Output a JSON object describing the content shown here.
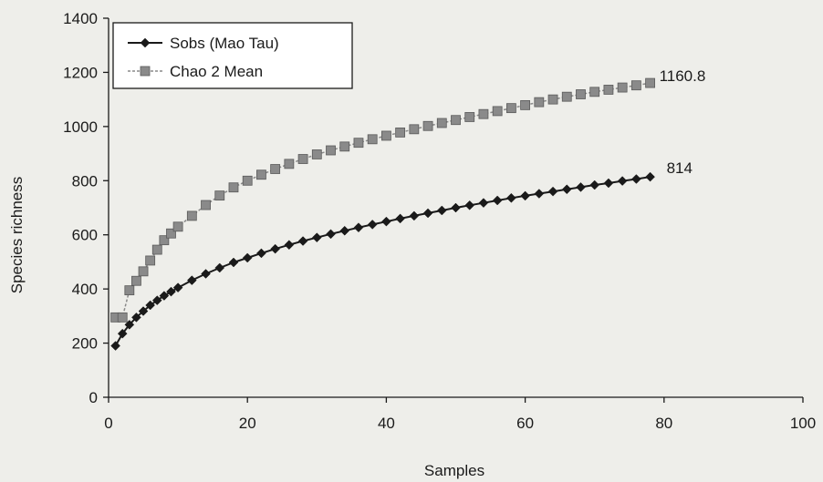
{
  "chart_data": {
    "type": "line",
    "title": "",
    "xlabel": "Samples",
    "ylabel": "Species richness",
    "xlim": [
      0,
      100
    ],
    "ylim": [
      0,
      1400
    ],
    "xticks": [
      0,
      20,
      40,
      60,
      80,
      100
    ],
    "xtick_labels": [
      "0",
      "20",
      "40",
      "60",
      "80",
      "100"
    ],
    "yticks": [
      0,
      200,
      400,
      600,
      800,
      1000,
      1200,
      1400
    ],
    "ytick_labels": [
      "0",
      "200",
      "400",
      "600",
      "800",
      "1000",
      "1200",
      "1400"
    ],
    "grid": false,
    "legend_position": "top-left",
    "x": [
      1,
      2,
      3,
      4,
      5,
      6,
      7,
      8,
      9,
      10,
      12,
      14,
      16,
      18,
      20,
      22,
      24,
      26,
      28,
      30,
      32,
      34,
      36,
      38,
      40,
      42,
      44,
      46,
      48,
      50,
      52,
      54,
      56,
      58,
      60,
      62,
      64,
      66,
      68,
      70,
      72,
      74,
      76,
      78
    ],
    "series": [
      {
        "name": "Sobs (Mao Tau)",
        "color": "#1a1a1a",
        "marker": "diamond",
        "values": [
          190,
          235,
          268,
          295,
          318,
          340,
          358,
          375,
          390,
          405,
          432,
          456,
          478,
          498,
          515,
          532,
          548,
          563,
          577,
          590,
          603,
          615,
          627,
          638,
          649,
          660,
          670,
          680,
          690,
          700,
          709,
          718,
          727,
          736,
          744,
          752,
          760,
          768,
          776,
          784,
          791,
          799,
          806,
          814
        ],
        "end_label": "814"
      },
      {
        "name": "Chao 2 Mean",
        "color": "#8a8a8a",
        "marker": "square",
        "values": [
          295,
          295,
          395,
          430,
          465,
          505,
          545,
          580,
          605,
          630,
          670,
          710,
          745,
          775,
          800,
          822,
          843,
          862,
          880,
          897,
          912,
          926,
          940,
          953,
          966,
          978,
          990,
          1002,
          1013,
          1024,
          1035,
          1046,
          1057,
          1068,
          1079,
          1090,
          1100,
          1110,
          1119,
          1128,
          1136,
          1144,
          1152,
          1160.8
        ],
        "end_label": "1160.8"
      }
    ]
  }
}
